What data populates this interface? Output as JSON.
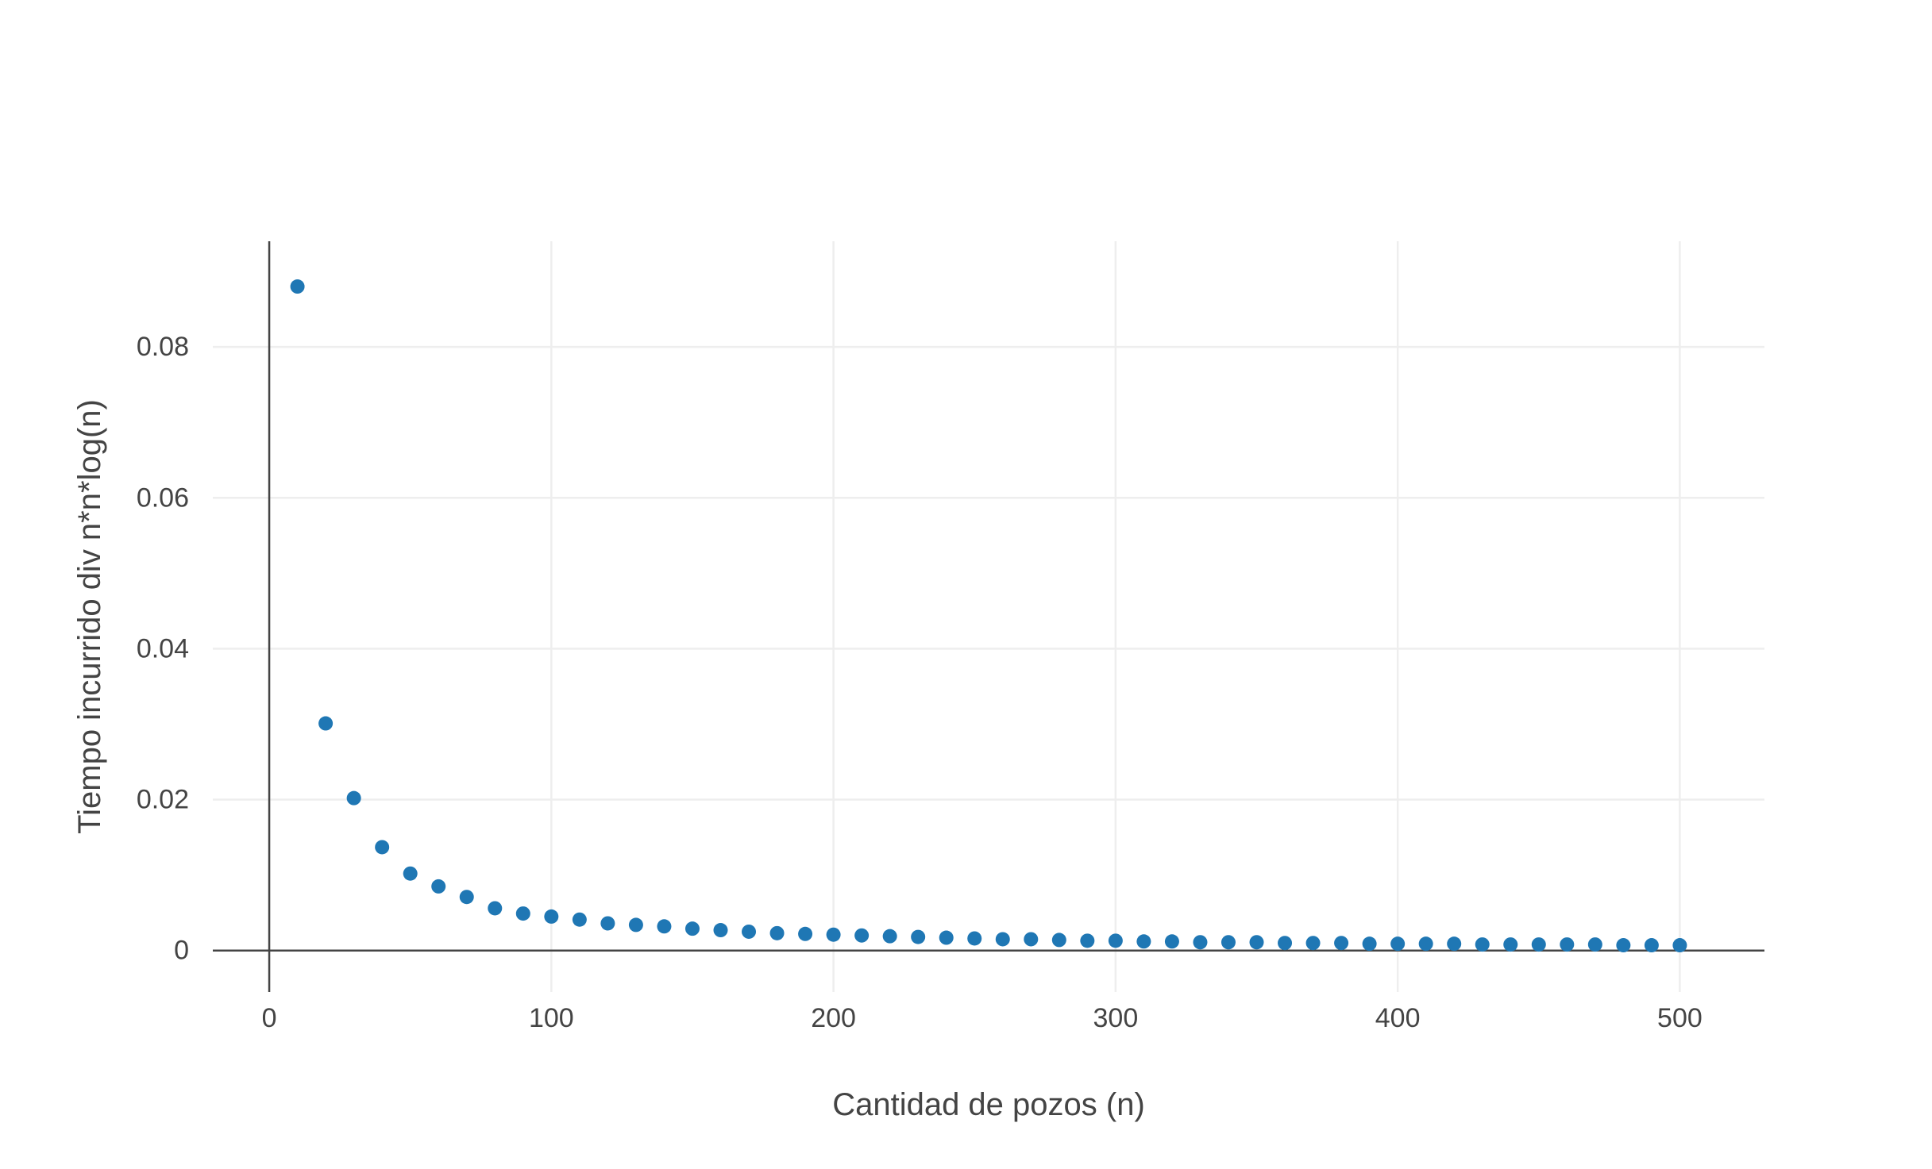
{
  "chart_data": {
    "type": "scatter",
    "title": "",
    "xlabel": "Cantidad de pozos (n)",
    "ylabel": "Tiempo incurrido div n*n*log(n)",
    "xlim": [
      -20,
      530
    ],
    "ylim": [
      -0.0055,
      0.094
    ],
    "xticks": [
      0,
      100,
      200,
      300,
      400,
      500
    ],
    "xtick_labels": [
      "0",
      "100",
      "200",
      "300",
      "400",
      "500"
    ],
    "yticks": [
      0,
      0.02,
      0.04,
      0.06,
      0.08
    ],
    "ytick_labels": [
      "0",
      "0.02",
      "0.04",
      "0.06",
      "0.08"
    ],
    "grid": true,
    "legend": "none",
    "marker_color": "#1f77b4",
    "gridline_color": "#eeeeee",
    "zeroline_color": "#444444",
    "series": [
      {
        "x": [
          10,
          20,
          30,
          40,
          50,
          60,
          70,
          80,
          90,
          100,
          110,
          120,
          130,
          140,
          150,
          160,
          170,
          180,
          190,
          200,
          210,
          220,
          230,
          240,
          250,
          260,
          270,
          280,
          290,
          300,
          310,
          320,
          330,
          340,
          350,
          360,
          370,
          380,
          390,
          400,
          410,
          420,
          430,
          440,
          450,
          460,
          470,
          480,
          490,
          500
        ],
        "y": [
          0.088,
          0.0301,
          0.0202,
          0.0137,
          0.0102,
          0.0085,
          0.0071,
          0.0056,
          0.0049,
          0.0045,
          0.0041,
          0.0036,
          0.0034,
          0.0032,
          0.0029,
          0.0027,
          0.0025,
          0.0023,
          0.0022,
          0.0021,
          0.002,
          0.0019,
          0.0018,
          0.0017,
          0.0016,
          0.0015,
          0.0015,
          0.0014,
          0.0013,
          0.0013,
          0.0012,
          0.0012,
          0.0011,
          0.0011,
          0.0011,
          0.001,
          0.001,
          0.001,
          0.0009,
          0.0009,
          0.0009,
          0.0009,
          0.0008,
          0.0008,
          0.0008,
          0.0008,
          0.0008,
          0.0007,
          0.0007,
          0.0007
        ]
      }
    ]
  }
}
